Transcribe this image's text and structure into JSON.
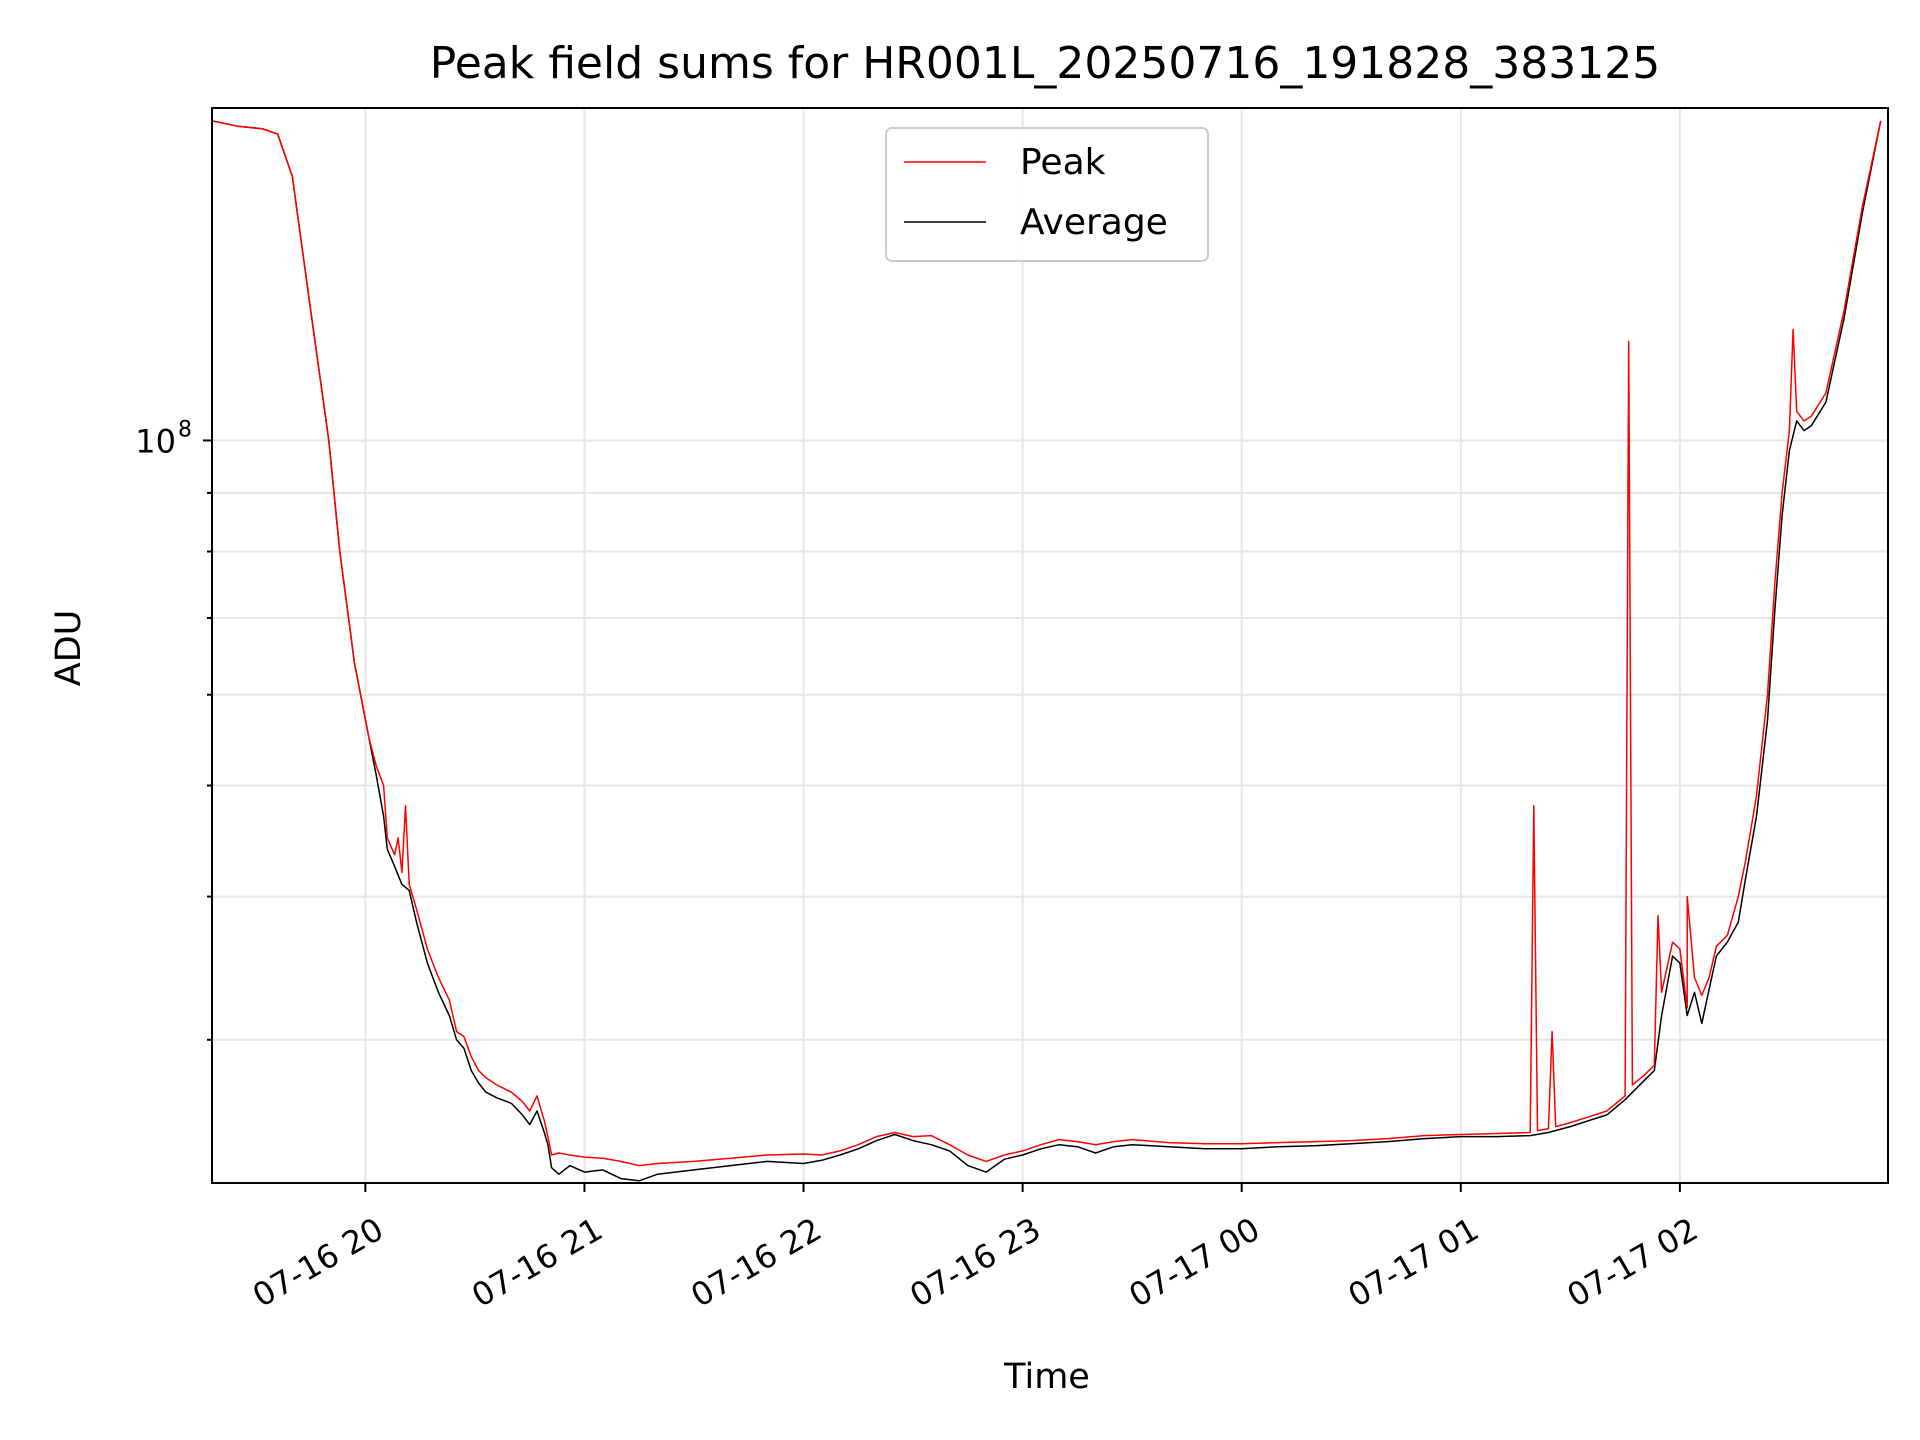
{
  "chart_data": {
    "type": "line",
    "title": "Peak field sums for HR001L_20250716_191828_383125",
    "xlabel": "Time",
    "ylabel": "ADU",
    "yscale": "log",
    "ylim": [
      22500000,
      195000000
    ],
    "xlim": [
      "2025-07-16 19:18",
      "2025-07-17 02:57"
    ],
    "x_ticks": [
      {
        "value": "2025-07-16 20:00",
        "label": "07-16 20"
      },
      {
        "value": "2025-07-16 21:00",
        "label": "07-16 21"
      },
      {
        "value": "2025-07-16 22:00",
        "label": "07-16 22"
      },
      {
        "value": "2025-07-16 23:00",
        "label": "07-16 23"
      },
      {
        "value": "2025-07-17 00:00",
        "label": "07-17 00"
      },
      {
        "value": "2025-07-17 01:00",
        "label": "07-17 01"
      },
      {
        "value": "2025-07-17 02:00",
        "label": "07-17 02"
      }
    ],
    "y_major_ticks": [
      {
        "value": 100000000,
        "base": "10",
        "exp": "8"
      }
    ],
    "y_minor_gridlines": [
      30000000,
      40000000,
      50000000,
      60000000,
      70000000,
      80000000,
      90000000
    ],
    "grid": true,
    "legend_position": "upper center",
    "series": [
      {
        "name": "Peak",
        "color": "#ff0000",
        "points": [
          [
            "2025-07-16 19:18",
            190000000
          ],
          [
            "2025-07-16 19:25",
            188000000
          ],
          [
            "2025-07-16 19:32",
            187000000
          ],
          [
            "2025-07-16 19:36",
            185000000
          ],
          [
            "2025-07-16 19:40",
            170000000
          ],
          [
            "2025-07-16 19:45",
            130000000
          ],
          [
            "2025-07-16 19:50",
            100000000
          ],
          [
            "2025-07-16 19:53",
            80000000
          ],
          [
            "2025-07-16 19:57",
            64000000
          ],
          [
            "2025-07-16 20:01",
            55000000
          ],
          [
            "2025-07-16 20:03",
            52000000
          ],
          [
            "2025-07-16 20:05",
            50000000
          ],
          [
            "2025-07-16 20:06",
            45000000
          ],
          [
            "2025-07-16 20:08",
            43500000
          ],
          [
            "2025-07-16 20:09",
            45000000
          ],
          [
            "2025-07-16 20:10",
            42000000
          ],
          [
            "2025-07-16 20:11",
            48000000
          ],
          [
            "2025-07-16 20:12",
            41000000
          ],
          [
            "2025-07-16 20:14",
            39000000
          ],
          [
            "2025-07-16 20:17",
            36000000
          ],
          [
            "2025-07-16 20:20",
            34000000
          ],
          [
            "2025-07-16 20:23",
            32500000
          ],
          [
            "2025-07-16 20:25",
            30500000
          ],
          [
            "2025-07-16 20:27",
            30200000
          ],
          [
            "2025-07-16 20:29",
            29000000
          ],
          [
            "2025-07-16 20:31",
            28200000
          ],
          [
            "2025-07-16 20:33",
            27800000
          ],
          [
            "2025-07-16 20:36",
            27400000
          ],
          [
            "2025-07-16 20:40",
            27000000
          ],
          [
            "2025-07-16 20:43",
            26500000
          ],
          [
            "2025-07-16 20:45",
            26000000
          ],
          [
            "2025-07-16 20:47",
            26800000
          ],
          [
            "2025-07-16 20:49",
            25500000
          ],
          [
            "2025-07-16 20:50",
            24700000
          ],
          [
            "2025-07-16 20:51",
            23800000
          ],
          [
            "2025-07-16 20:53",
            23900000
          ],
          [
            "2025-07-16 20:56",
            23800000
          ],
          [
            "2025-07-16 21:00",
            23700000
          ],
          [
            "2025-07-16 21:05",
            23650000
          ],
          [
            "2025-07-16 21:10",
            23500000
          ],
          [
            "2025-07-16 21:15",
            23300000
          ],
          [
            "2025-07-16 21:20",
            23400000
          ],
          [
            "2025-07-16 21:30",
            23500000
          ],
          [
            "2025-07-16 21:40",
            23650000
          ],
          [
            "2025-07-16 21:50",
            23800000
          ],
          [
            "2025-07-16 22:00",
            23850000
          ],
          [
            "2025-07-16 22:05",
            23800000
          ],
          [
            "2025-07-16 22:10",
            24000000
          ],
          [
            "2025-07-16 22:15",
            24300000
          ],
          [
            "2025-07-16 22:20",
            24700000
          ],
          [
            "2025-07-16 22:25",
            24900000
          ],
          [
            "2025-07-16 22:30",
            24700000
          ],
          [
            "2025-07-16 22:35",
            24750000
          ],
          [
            "2025-07-16 22:40",
            24300000
          ],
          [
            "2025-07-16 22:45",
            23800000
          ],
          [
            "2025-07-16 22:50",
            23500000
          ],
          [
            "2025-07-16 22:55",
            23800000
          ],
          [
            "2025-07-16 23:00",
            24000000
          ],
          [
            "2025-07-16 23:05",
            24300000
          ],
          [
            "2025-07-16 23:10",
            24550000
          ],
          [
            "2025-07-16 23:15",
            24450000
          ],
          [
            "2025-07-16 23:20",
            24300000
          ],
          [
            "2025-07-16 23:25",
            24450000
          ],
          [
            "2025-07-16 23:30",
            24550000
          ],
          [
            "2025-07-16 23:40",
            24400000
          ],
          [
            "2025-07-16 23:50",
            24350000
          ],
          [
            "2025-07-17 00:00",
            24350000
          ],
          [
            "2025-07-17 00:10",
            24400000
          ],
          [
            "2025-07-17 00:20",
            24450000
          ],
          [
            "2025-07-17 00:30",
            24500000
          ],
          [
            "2025-07-17 00:40",
            24600000
          ],
          [
            "2025-07-17 00:50",
            24750000
          ],
          [
            "2025-07-17 01:00",
            24800000
          ],
          [
            "2025-07-17 01:10",
            24850000
          ],
          [
            "2025-07-17 01:19",
            24900000
          ],
          [
            "2025-07-17 01:20",
            48000000
          ],
          [
            "2025-07-17 01:21",
            25000000
          ],
          [
            "2025-07-17 01:24",
            25100000
          ],
          [
            "2025-07-17 01:25",
            30500000
          ],
          [
            "2025-07-17 01:26",
            25200000
          ],
          [
            "2025-07-17 01:30",
            25400000
          ],
          [
            "2025-07-17 01:35",
            25700000
          ],
          [
            "2025-07-17 01:40",
            26000000
          ],
          [
            "2025-07-17 01:45",
            26800000
          ],
          [
            "2025-07-17 01:46",
            122000000
          ],
          [
            "2025-07-17 01:47",
            27400000
          ],
          [
            "2025-07-17 01:50",
            27900000
          ],
          [
            "2025-07-17 01:53",
            28500000
          ],
          [
            "2025-07-17 01:54",
            38500000
          ],
          [
            "2025-07-17 01:55",
            33000000
          ],
          [
            "2025-07-17 01:58",
            36500000
          ],
          [
            "2025-07-17 02:00",
            36000000
          ],
          [
            "2025-07-17 02:02",
            32000000
          ],
          [
            "2025-07-17 02:02",
            40000000
          ],
          [
            "2025-07-17 02:04",
            34000000
          ],
          [
            "2025-07-17 02:06",
            32800000
          ],
          [
            "2025-07-17 02:08",
            34000000
          ],
          [
            "2025-07-17 02:10",
            36200000
          ],
          [
            "2025-07-17 02:13",
            37000000
          ],
          [
            "2025-07-17 02:16",
            40000000
          ],
          [
            "2025-07-17 02:18",
            43000000
          ],
          [
            "2025-07-17 02:21",
            49000000
          ],
          [
            "2025-07-17 02:24",
            60000000
          ],
          [
            "2025-07-17 02:26",
            75000000
          ],
          [
            "2025-07-17 02:28",
            90000000
          ],
          [
            "2025-07-17 02:30",
            102000000
          ],
          [
            "2025-07-17 02:31",
            125000000
          ],
          [
            "2025-07-17 02:32",
            106000000
          ],
          [
            "2025-07-17 02:34",
            104000000
          ],
          [
            "2025-07-17 02:36",
            105000000
          ],
          [
            "2025-07-17 02:40",
            110000000
          ],
          [
            "2025-07-17 02:45",
            130000000
          ],
          [
            "2025-07-17 02:50",
            160000000
          ],
          [
            "2025-07-17 02:55",
            190000000
          ]
        ]
      },
      {
        "name": "Average",
        "color": "#000000",
        "points": [
          [
            "2025-07-16 19:18",
            190000000
          ],
          [
            "2025-07-16 19:25",
            188000000
          ],
          [
            "2025-07-16 19:32",
            187000000
          ],
          [
            "2025-07-16 19:36",
            185000000
          ],
          [
            "2025-07-16 19:40",
            170000000
          ],
          [
            "2025-07-16 19:45",
            130000000
          ],
          [
            "2025-07-16 19:50",
            100000000
          ],
          [
            "2025-07-16 19:53",
            80000000
          ],
          [
            "2025-07-16 19:57",
            64000000
          ],
          [
            "2025-07-16 20:01",
            55000000
          ],
          [
            "2025-07-16 20:03",
            51000000
          ],
          [
            "2025-07-16 20:05",
            47000000
          ],
          [
            "2025-07-16 20:06",
            44000000
          ],
          [
            "2025-07-16 20:08",
            42500000
          ],
          [
            "2025-07-16 20:10",
            41000000
          ],
          [
            "2025-07-16 20:12",
            40500000
          ],
          [
            "2025-07-16 20:14",
            38000000
          ],
          [
            "2025-07-16 20:17",
            35000000
          ],
          [
            "2025-07-16 20:20",
            33000000
          ],
          [
            "2025-07-16 20:23",
            31500000
          ],
          [
            "2025-07-16 20:25",
            30000000
          ],
          [
            "2025-07-16 20:27",
            29500000
          ],
          [
            "2025-07-16 20:29",
            28200000
          ],
          [
            "2025-07-16 20:31",
            27500000
          ],
          [
            "2025-07-16 20:33",
            27000000
          ],
          [
            "2025-07-16 20:36",
            26700000
          ],
          [
            "2025-07-16 20:40",
            26400000
          ],
          [
            "2025-07-16 20:43",
            25800000
          ],
          [
            "2025-07-16 20:45",
            25300000
          ],
          [
            "2025-07-16 20:47",
            26000000
          ],
          [
            "2025-07-16 20:49",
            24900000
          ],
          [
            "2025-07-16 20:50",
            24300000
          ],
          [
            "2025-07-16 20:51",
            23200000
          ],
          [
            "2025-07-16 20:53",
            22900000
          ],
          [
            "2025-07-16 20:56",
            23300000
          ],
          [
            "2025-07-16 21:00",
            23000000
          ],
          [
            "2025-07-16 21:05",
            23100000
          ],
          [
            "2025-07-16 21:10",
            22700000
          ],
          [
            "2025-07-16 21:15",
            22600000
          ],
          [
            "2025-07-16 21:20",
            22900000
          ],
          [
            "2025-07-16 21:30",
            23100000
          ],
          [
            "2025-07-16 21:40",
            23300000
          ],
          [
            "2025-07-16 21:50",
            23500000
          ],
          [
            "2025-07-16 22:00",
            23400000
          ],
          [
            "2025-07-16 22:05",
            23550000
          ],
          [
            "2025-07-16 22:10",
            23800000
          ],
          [
            "2025-07-16 22:15",
            24100000
          ],
          [
            "2025-07-16 22:20",
            24500000
          ],
          [
            "2025-07-16 22:25",
            24800000
          ],
          [
            "2025-07-16 22:30",
            24500000
          ],
          [
            "2025-07-16 22:35",
            24300000
          ],
          [
            "2025-07-16 22:40",
            24000000
          ],
          [
            "2025-07-16 22:45",
            23300000
          ],
          [
            "2025-07-16 22:50",
            23000000
          ],
          [
            "2025-07-16 22:55",
            23600000
          ],
          [
            "2025-07-16 23:00",
            23800000
          ],
          [
            "2025-07-16 23:05",
            24100000
          ],
          [
            "2025-07-16 23:10",
            24300000
          ],
          [
            "2025-07-16 23:15",
            24200000
          ],
          [
            "2025-07-16 23:20",
            23900000
          ],
          [
            "2025-07-16 23:25",
            24200000
          ],
          [
            "2025-07-16 23:30",
            24300000
          ],
          [
            "2025-07-16 23:40",
            24200000
          ],
          [
            "2025-07-16 23:50",
            24100000
          ],
          [
            "2025-07-17 00:00",
            24100000
          ],
          [
            "2025-07-17 00:10",
            24200000
          ],
          [
            "2025-07-17 00:20",
            24250000
          ],
          [
            "2025-07-17 00:30",
            24350000
          ],
          [
            "2025-07-17 00:40",
            24450000
          ],
          [
            "2025-07-17 00:50",
            24600000
          ],
          [
            "2025-07-17 01:00",
            24700000
          ],
          [
            "2025-07-17 01:10",
            24700000
          ],
          [
            "2025-07-17 01:19",
            24750000
          ],
          [
            "2025-07-17 01:24",
            24900000
          ],
          [
            "2025-07-17 01:30",
            25200000
          ],
          [
            "2025-07-17 01:35",
            25500000
          ],
          [
            "2025-07-17 01:40",
            25800000
          ],
          [
            "2025-07-17 01:45",
            26600000
          ],
          [
            "2025-07-17 01:50",
            27600000
          ],
          [
            "2025-07-17 01:53",
            28200000
          ],
          [
            "2025-07-17 01:55",
            31500000
          ],
          [
            "2025-07-17 01:58",
            35500000
          ],
          [
            "2025-07-17 02:00",
            35000000
          ],
          [
            "2025-07-17 02:02",
            31500000
          ],
          [
            "2025-07-17 02:04",
            33000000
          ],
          [
            "2025-07-17 02:06",
            31000000
          ],
          [
            "2025-07-17 02:08",
            33200000
          ],
          [
            "2025-07-17 02:10",
            35500000
          ],
          [
            "2025-07-17 02:13",
            36500000
          ],
          [
            "2025-07-17 02:16",
            38000000
          ],
          [
            "2025-07-17 02:18",
            41500000
          ],
          [
            "2025-07-17 02:21",
            47000000
          ],
          [
            "2025-07-17 02:24",
            57000000
          ],
          [
            "2025-07-17 02:26",
            71000000
          ],
          [
            "2025-07-17 02:28",
            86000000
          ],
          [
            "2025-07-17 02:30",
            98000000
          ],
          [
            "2025-07-17 02:32",
            104000000
          ],
          [
            "2025-07-17 02:34",
            102000000
          ],
          [
            "2025-07-17 02:36",
            103000000
          ],
          [
            "2025-07-17 02:40",
            108000000
          ],
          [
            "2025-07-17 02:45",
            128000000
          ],
          [
            "2025-07-17 02:50",
            158000000
          ],
          [
            "2025-07-17 02:55",
            190000000
          ]
        ]
      }
    ]
  }
}
